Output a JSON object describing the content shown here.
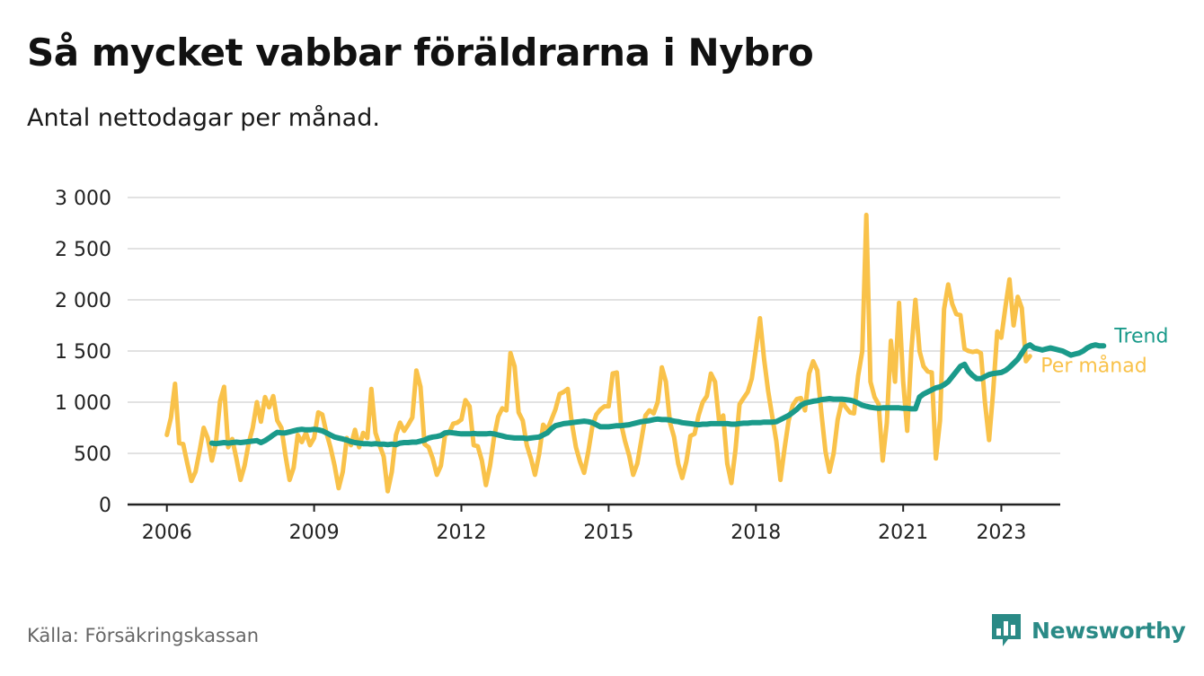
{
  "header": {
    "title": "Så mycket vabbar föräldrarna i Nybro",
    "subtitle": "Antal nettodagar per månad."
  },
  "footer": {
    "source": "Källa: Försäkringskassan",
    "brand": "Newsworthy",
    "brand_icon": "bar-chart-speech-bubble-icon"
  },
  "chart_data": {
    "type": "line",
    "xlabel": "",
    "ylabel": "",
    "ylim": [
      0,
      3000
    ],
    "xlim": [
      2005.2,
      2024.2
    ],
    "y_ticks": [
      0,
      500,
      1000,
      1500,
      2000,
      2500,
      3000
    ],
    "y_tick_labels": [
      "0",
      "500",
      "1 000",
      "1 500",
      "2 000",
      "2 500",
      "3 000"
    ],
    "x_ticks": [
      2006,
      2009,
      2012,
      2015,
      2018,
      2021,
      2023
    ],
    "x_tick_labels": [
      "2006",
      "2009",
      "2012",
      "2015",
      "2018",
      "2021",
      "2023"
    ],
    "grid": true,
    "legend": "direct labels at right end of lines",
    "colors": {
      "monthly": "#f9c24a",
      "trend": "#1a9a8a",
      "grid": "#d9d9d9",
      "axis": "#222222"
    },
    "series": [
      {
        "name": "Per månad",
        "color": "#f9c24a",
        "start": "2006-01",
        "values": [
          680,
          850,
          1180,
          600,
          590,
          400,
          230,
          320,
          520,
          750,
          650,
          430,
          600,
          1010,
          1150,
          560,
          640,
          450,
          240,
          380,
          600,
          750,
          1000,
          810,
          1050,
          950,
          1060,
          820,
          750,
          480,
          240,
          360,
          680,
          610,
          700,
          580,
          650,
          900,
          880,
          700,
          560,
          380,
          160,
          320,
          650,
          580,
          730,
          560,
          700,
          650,
          1130,
          700,
          580,
          470,
          130,
          320,
          680,
          800,
          720,
          780,
          850,
          1310,
          1150,
          590,
          560,
          450,
          290,
          380,
          680,
          700,
          790,
          800,
          830,
          1020,
          960,
          580,
          570,
          430,
          190,
          380,
          660,
          860,
          940,
          920,
          1480,
          1350,
          900,
          820,
          580,
          450,
          290,
          490,
          780,
          730,
          830,
          930,
          1080,
          1100,
          1130,
          800,
          560,
          420,
          310,
          510,
          760,
          880,
          930,
          960,
          960,
          1280,
          1290,
          800,
          620,
          480,
          290,
          400,
          630,
          870,
          920,
          890,
          1000,
          1340,
          1200,
          800,
          660,
          400,
          260,
          420,
          670,
          690,
          870,
          1000,
          1060,
          1280,
          1200,
          820,
          870,
          400,
          210,
          530,
          980,
          1040,
          1100,
          1230,
          1520,
          1820,
          1420,
          1110,
          860,
          620,
          240,
          550,
          820,
          970,
          1030,
          1040,
          920,
          1280,
          1400,
          1310,
          900,
          520,
          320,
          500,
          830,
          1010,
          950,
          900,
          890,
          1260,
          1500,
          2830,
          1200,
          1050,
          980,
          430,
          800,
          1600,
          1200,
          1970,
          1200,
          720,
          1500,
          2000,
          1500,
          1350,
          1300,
          1290,
          450,
          820,
          1910,
          2150,
          1960,
          1860,
          1850,
          1520,
          1500,
          1490,
          1500,
          1480,
          1000,
          630,
          1100,
          1690,
          1630,
          1930,
          2200,
          1750,
          2030,
          1920,
          1400,
          1450
        ]
      },
      {
        "name": "Trend",
        "color": "#1a9a8a",
        "start": "2006-12",
        "values": [
          600,
          595,
          600,
          605,
          600,
          605,
          610,
          605,
          610,
          615,
          620,
          625,
          605,
          625,
          650,
          680,
          705,
          700,
          700,
          710,
          720,
          730,
          735,
          730,
          730,
          735,
          730,
          720,
          700,
          680,
          660,
          650,
          640,
          630,
          615,
          605,
          600,
          595,
          595,
          590,
          595,
          590,
          590,
          585,
          590,
          585,
          600,
          605,
          605,
          610,
          610,
          620,
          630,
          650,
          660,
          665,
          675,
          700,
          705,
          700,
          695,
          690,
          690,
          690,
          695,
          690,
          690,
          690,
          695,
          690,
          680,
          670,
          660,
          655,
          650,
          650,
          650,
          645,
          650,
          655,
          660,
          680,
          700,
          740,
          770,
          780,
          790,
          795,
          800,
          805,
          810,
          815,
          810,
          800,
          780,
          760,
          760,
          760,
          765,
          770,
          770,
          775,
          780,
          790,
          800,
          810,
          815,
          820,
          830,
          835,
          830,
          830,
          825,
          815,
          810,
          800,
          795,
          790,
          785,
          780,
          785,
          785,
          790,
          790,
          790,
          790,
          790,
          785,
          785,
          790,
          795,
          795,
          800,
          800,
          800,
          805,
          805,
          805,
          810,
          830,
          850,
          870,
          900,
          930,
          970,
          990,
          1000,
          1010,
          1015,
          1025,
          1030,
          1035,
          1030,
          1030,
          1030,
          1025,
          1020,
          1010,
          990,
          970,
          960,
          950,
          945,
          940,
          945,
          945,
          945,
          945,
          945,
          940,
          940,
          935,
          935,
          1050,
          1080,
          1100,
          1120,
          1140,
          1150,
          1170,
          1200,
          1250,
          1300,
          1350,
          1370,
          1300,
          1260,
          1230,
          1230,
          1250,
          1270,
          1280,
          1285,
          1290,
          1310,
          1340,
          1380,
          1420,
          1480,
          1540,
          1560,
          1530,
          1520,
          1510,
          1520,
          1530,
          1520,
          1510,
          1500,
          1480,
          1460,
          1470,
          1480,
          1500,
          1530,
          1550,
          1560,
          1550,
          1550
        ]
      }
    ],
    "series_labels": [
      "Trend",
      "Per månad"
    ]
  }
}
